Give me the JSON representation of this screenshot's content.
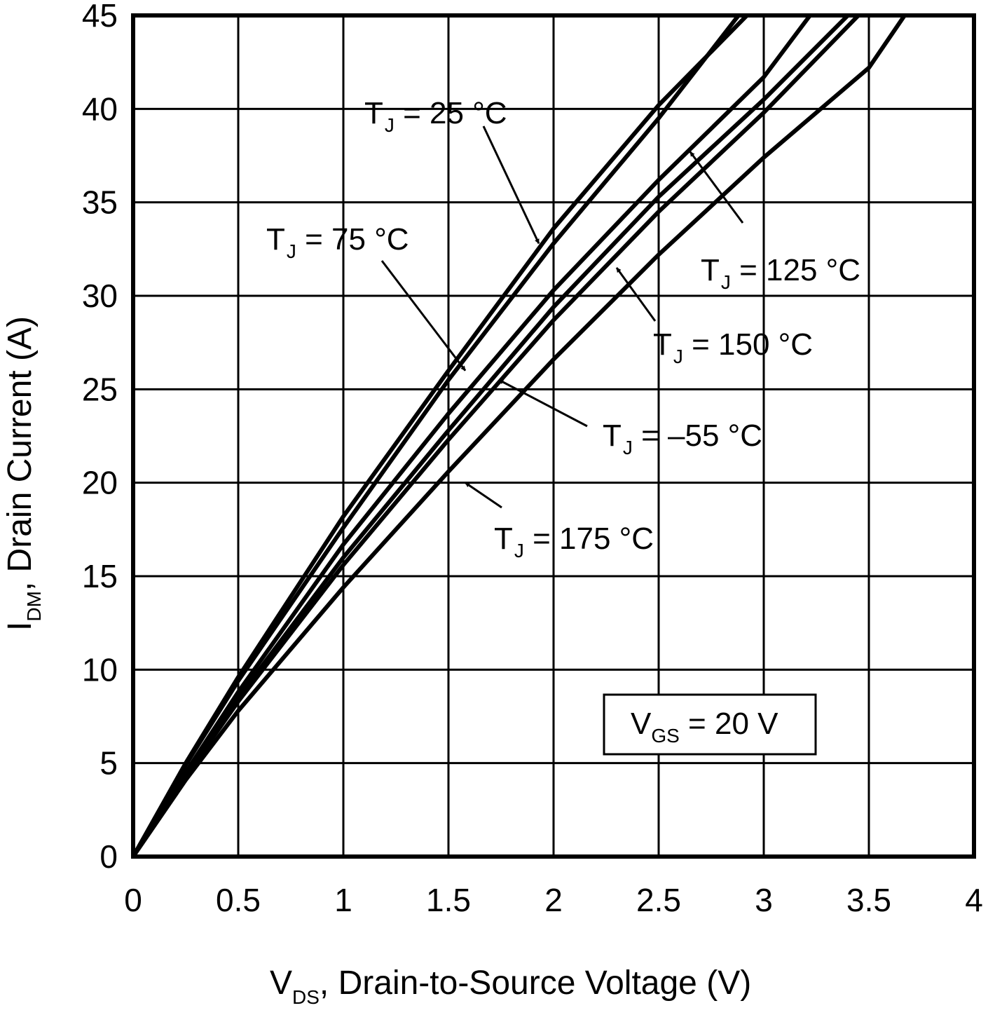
{
  "chart_data": {
    "type": "line",
    "title": "",
    "xlabel": {
      "main": "V",
      "sub": "DS",
      "rest": ", Drain-to-Source Voltage (V)"
    },
    "ylabel": {
      "main": "I",
      "sub": "DM",
      "rest": ", Drain Current (A)"
    },
    "xlim": [
      0,
      4
    ],
    "ylim": [
      0,
      45
    ],
    "xticks": [
      "0",
      "0.5",
      "1",
      "1.5",
      "2",
      "2.5",
      "3",
      "3.5",
      "4"
    ],
    "yticks": [
      "0",
      "5",
      "10",
      "15",
      "20",
      "25",
      "30",
      "35",
      "40",
      "45"
    ],
    "grid": true,
    "condition": {
      "main": "V",
      "sub": "GS",
      "rest": " = 20 V"
    },
    "series": [
      {
        "name": {
          "main": "T",
          "sub": "J",
          "rest": " = 25 °C"
        },
        "x": [
          0,
          0.25,
          0.5,
          1.0,
          1.5,
          2.0,
          2.5,
          2.92
        ],
        "y": [
          0,
          5.0,
          9.6,
          18.2,
          26.0,
          33.6,
          40.2,
          45
        ]
      },
      {
        "name": {
          "main": "T",
          "sub": "J",
          "rest": " = 75 °C"
        },
        "x": [
          0,
          0.25,
          0.5,
          1.0,
          1.5,
          2.0,
          2.5,
          2.88
        ],
        "y": [
          0,
          4.9,
          9.4,
          17.6,
          25.5,
          32.8,
          39.5,
          45
        ]
      },
      {
        "name": {
          "main": "T",
          "sub": "J",
          "rest": " = –55 °C"
        },
        "x": [
          0,
          0.25,
          0.5,
          1.0,
          1.5,
          2.0,
          2.5,
          3.0,
          3.22
        ],
        "y": [
          0,
          4.5,
          8.8,
          16.7,
          23.7,
          30.3,
          36.2,
          41.7,
          45
        ]
      },
      {
        "name": {
          "main": "T",
          "sub": "J",
          "rest": " = 125 °C"
        },
        "x": [
          0,
          0.25,
          0.5,
          1.0,
          1.5,
          2.0,
          2.5,
          3.0,
          3.4
        ],
        "y": [
          0,
          4.4,
          8.5,
          16.0,
          22.8,
          29.4,
          35.3,
          40.5,
          45
        ]
      },
      {
        "name": {
          "main": "T",
          "sub": "J",
          "rest": " = 150 °C"
        },
        "x": [
          0,
          0.25,
          0.5,
          1.0,
          1.5,
          2.0,
          2.5,
          3.0,
          3.45
        ],
        "y": [
          0,
          4.3,
          8.3,
          15.6,
          22.3,
          28.7,
          34.5,
          39.8,
          45
        ]
      },
      {
        "name": {
          "main": "T",
          "sub": "J",
          "rest": " = 175 °C"
        },
        "x": [
          0,
          0.25,
          0.5,
          1.0,
          1.5,
          2.0,
          2.5,
          3.0,
          3.5,
          3.67
        ],
        "y": [
          0,
          4.1,
          7.8,
          14.4,
          20.6,
          26.6,
          32.2,
          37.4,
          42.2,
          45
        ]
      }
    ]
  }
}
